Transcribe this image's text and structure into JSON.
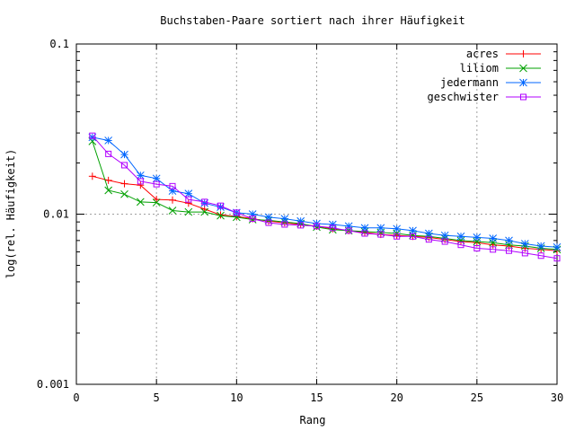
{
  "chart_data": {
    "type": "line",
    "title": "Buchstaben-Paare sortiert nach ihrer Häufigkeit",
    "xlabel": "Rang",
    "ylabel": "log(rel. Häufigkeit)",
    "xlim": [
      0,
      30
    ],
    "ylim": [
      0.001,
      0.1
    ],
    "yscale": "log",
    "grid": true,
    "legend": "top-right",
    "x_ticks": [
      0,
      5,
      10,
      15,
      20,
      25,
      30
    ],
    "x_tick_labels": [
      "0",
      "5",
      "10",
      "15",
      "20",
      "25",
      "30"
    ],
    "y_ticks": [
      0.001,
      0.01,
      0.1
    ],
    "y_tick_labels": [
      "0.001",
      "0.01",
      "0.1"
    ],
    "x": [
      1,
      2,
      3,
      4,
      5,
      6,
      7,
      8,
      9,
      10,
      11,
      12,
      13,
      14,
      15,
      16,
      17,
      18,
      19,
      20,
      21,
      22,
      23,
      24,
      25,
      26,
      27,
      28,
      29,
      30
    ],
    "series": [
      {
        "name": "acres",
        "color": "#ff0000",
        "marker": "plus",
        "values": [
          0.0167,
          0.0158,
          0.0151,
          0.0148,
          0.0122,
          0.0121,
          0.0116,
          0.0107,
          0.0099,
          0.0097,
          0.0094,
          0.0091,
          0.0089,
          0.0087,
          0.0085,
          0.0082,
          0.008,
          0.0078,
          0.0076,
          0.0075,
          0.0074,
          0.0073,
          0.0071,
          0.0069,
          0.0068,
          0.0066,
          0.0065,
          0.0063,
          0.0062,
          0.0061
        ]
      },
      {
        "name": "liliom",
        "color": "#00a000",
        "marker": "cross",
        "values": [
          0.0268,
          0.0138,
          0.0131,
          0.0118,
          0.0117,
          0.0105,
          0.0103,
          0.0103,
          0.0098,
          0.0096,
          0.0093,
          0.0092,
          0.009,
          0.0088,
          0.0084,
          0.0081,
          0.008,
          0.0079,
          0.0078,
          0.0077,
          0.0075,
          0.0074,
          0.0072,
          0.007,
          0.0069,
          0.0068,
          0.0066,
          0.0065,
          0.0063,
          0.0062
        ]
      },
      {
        "name": "jedermann",
        "color": "#0066ff",
        "marker": "star",
        "values": [
          0.0283,
          0.0271,
          0.0224,
          0.0169,
          0.0162,
          0.0137,
          0.0132,
          0.0116,
          0.011,
          0.0102,
          0.01,
          0.0096,
          0.0094,
          0.0091,
          0.0088,
          0.0087,
          0.0085,
          0.0083,
          0.0083,
          0.0082,
          0.008,
          0.0077,
          0.0075,
          0.0074,
          0.0073,
          0.0072,
          0.007,
          0.0067,
          0.0065,
          0.0064
        ]
      },
      {
        "name": "geschwister",
        "color": "#b000ff",
        "marker": "square",
        "values": [
          0.0289,
          0.0226,
          0.0194,
          0.0156,
          0.015,
          0.0146,
          0.0122,
          0.0118,
          0.0112,
          0.0102,
          0.0094,
          0.0089,
          0.0087,
          0.0086,
          0.0085,
          0.0083,
          0.008,
          0.0077,
          0.0076,
          0.0074,
          0.0074,
          0.0071,
          0.0069,
          0.0066,
          0.0063,
          0.0062,
          0.0061,
          0.0059,
          0.0057,
          0.0055
        ]
      }
    ]
  }
}
